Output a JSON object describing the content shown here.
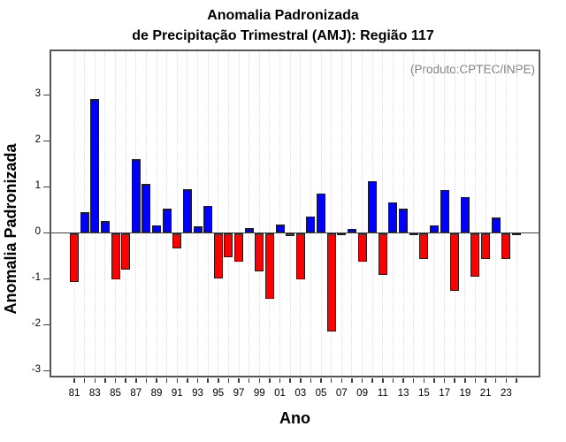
{
  "page": {
    "title_line1": "Anomalia Padronizada",
    "title_line2": "de Precipitação Trimestral (AMJ): Região 117",
    "annotation": "(Produto:CPTEC/INPE)",
    "xlabel": "Ano",
    "ylabel": "Anomalia Padronizada"
  },
  "chart_data": {
    "type": "bar",
    "title": "Anomalia Padronizada de Precipitação Trimestral (AMJ): Região 117",
    "subtitle": "",
    "annotation": "(Produto:CPTEC/INPE)",
    "xlabel": "Ano",
    "ylabel": "Anomalia Padronizada",
    "categories": [
      "81",
      "82",
      "83",
      "84",
      "85",
      "86",
      "87",
      "88",
      "89",
      "90",
      "91",
      "92",
      "93",
      "94",
      "95",
      "96",
      "97",
      "98",
      "99",
      "00",
      "01",
      "02",
      "03",
      "04",
      "05",
      "06",
      "07",
      "08",
      "09",
      "10",
      "11",
      "12",
      "13",
      "14",
      "15",
      "16",
      "17",
      "18",
      "19",
      "20",
      "21",
      "22",
      "23",
      "24"
    ],
    "values": [
      -1.06,
      0.46,
      2.92,
      0.26,
      -1.0,
      -0.78,
      1.61,
      1.06,
      0.17,
      0.53,
      -0.33,
      0.96,
      0.15,
      0.59,
      -0.98,
      -0.51,
      -0.61,
      0.11,
      -0.82,
      -1.41,
      0.19,
      -0.05,
      -0.99,
      0.35,
      0.85,
      -2.13,
      -0.03,
      0.08,
      -0.61,
      1.12,
      -0.9,
      0.66,
      0.52,
      -0.04,
      -0.55,
      0.16,
      0.94,
      -1.25,
      0.78,
      -0.93,
      -0.56,
      0.34,
      -0.56,
      -0.02
    ],
    "x_tick_labels_shown": [
      "81",
      "83",
      "85",
      "87",
      "89",
      "91",
      "93",
      "95",
      "97",
      "99",
      "01",
      "03",
      "05",
      "07",
      "09",
      "11",
      "13",
      "15",
      "17",
      "19",
      "21",
      "23"
    ],
    "y_ticks": [
      3,
      2,
      1,
      0,
      -1,
      -2,
      -3
    ],
    "ylim": [
      -3.15,
      3.95
    ],
    "grid": "vertical-dotted-per-year",
    "legend": "none",
    "positive_color": "#0000ff",
    "negative_color": "#ff0000"
  }
}
